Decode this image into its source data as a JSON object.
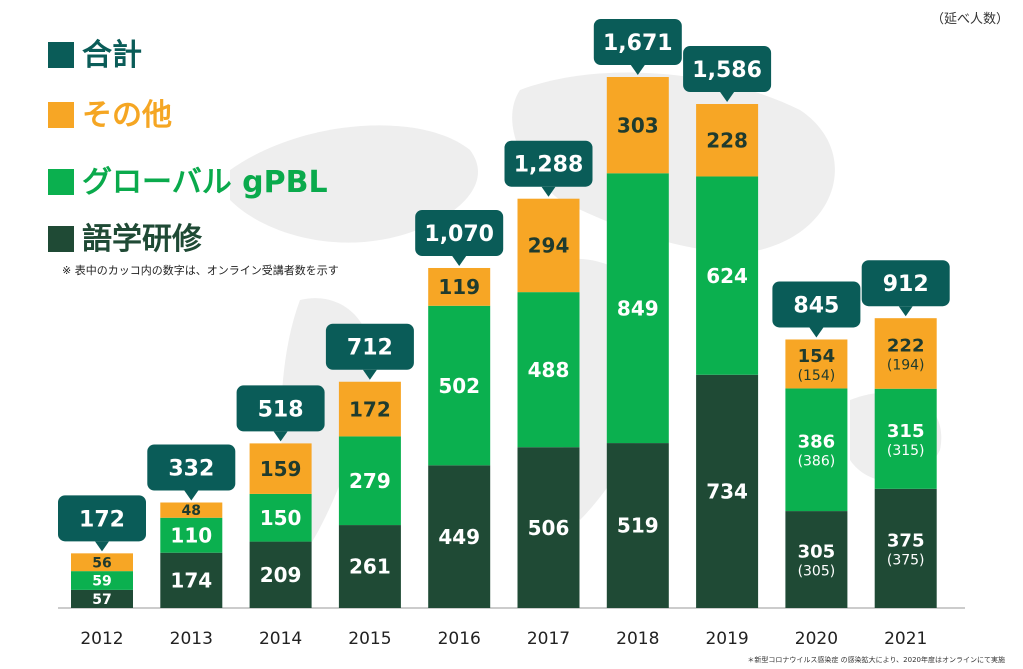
{
  "unit_label": "（延べ人数）",
  "legend": {
    "total": "合計",
    "other": "その他",
    "global": "グローバル gPBL",
    "language": "語学研修"
  },
  "note": "※ 表中のカッコ内の数字は、オンライン受講者数を示す",
  "footnote": "＊新型コロナウイルス感染症 の感染拡大により、2020年度はオンラインにて実施",
  "colors": {
    "total": "#0a5c58",
    "other": "#f7a625",
    "global": "#0bb04f",
    "language": "#1f4a35"
  },
  "chart_data": {
    "type": "bar",
    "stacked": true,
    "title": "",
    "xlabel": "",
    "ylabel": "",
    "ylim": [
      0,
      1700
    ],
    "categories": [
      "2012",
      "2013",
      "2014",
      "2015",
      "2016",
      "2017",
      "2018",
      "2019",
      "2020",
      "2021"
    ],
    "series": [
      {
        "name": "語学研修",
        "key": "language",
        "values": [
          57,
          174,
          209,
          261,
          449,
          506,
          519,
          734,
          305,
          375
        ]
      },
      {
        "name": "グローバル gPBL",
        "key": "global",
        "values": [
          59,
          110,
          150,
          279,
          502,
          488,
          849,
          624,
          386,
          315
        ]
      },
      {
        "name": "その他",
        "key": "other",
        "values": [
          56,
          48,
          159,
          172,
          119,
          294,
          303,
          228,
          154,
          222
        ]
      }
    ],
    "value_labels": {
      "language": [
        "57",
        "174",
        "209",
        "261",
        "449",
        "506",
        "519",
        "734",
        "305",
        "375"
      ],
      "global": [
        "59",
        "110",
        "150",
        "279",
        "502",
        "488",
        "849",
        "624",
        "386",
        "315"
      ],
      "other": [
        "56",
        "48",
        "159",
        "172",
        "119",
        "294",
        "303",
        "228",
        "154",
        "222"
      ]
    },
    "online_labels": {
      "language": [
        null,
        null,
        null,
        null,
        null,
        null,
        null,
        null,
        "(305)",
        "(375)"
      ],
      "global": [
        null,
        null,
        null,
        null,
        null,
        null,
        null,
        null,
        "(386)",
        "(315)"
      ],
      "other": [
        null,
        null,
        null,
        null,
        null,
        null,
        null,
        null,
        "(154)",
        "(194)"
      ]
    },
    "totals": [
      172,
      332,
      518,
      712,
      1070,
      1288,
      1671,
      1586,
      845,
      912
    ],
    "total_labels": [
      "172",
      "332",
      "518",
      "712",
      "1,070",
      "1,288",
      "1,671",
      "1,586",
      "845",
      "912"
    ]
  }
}
